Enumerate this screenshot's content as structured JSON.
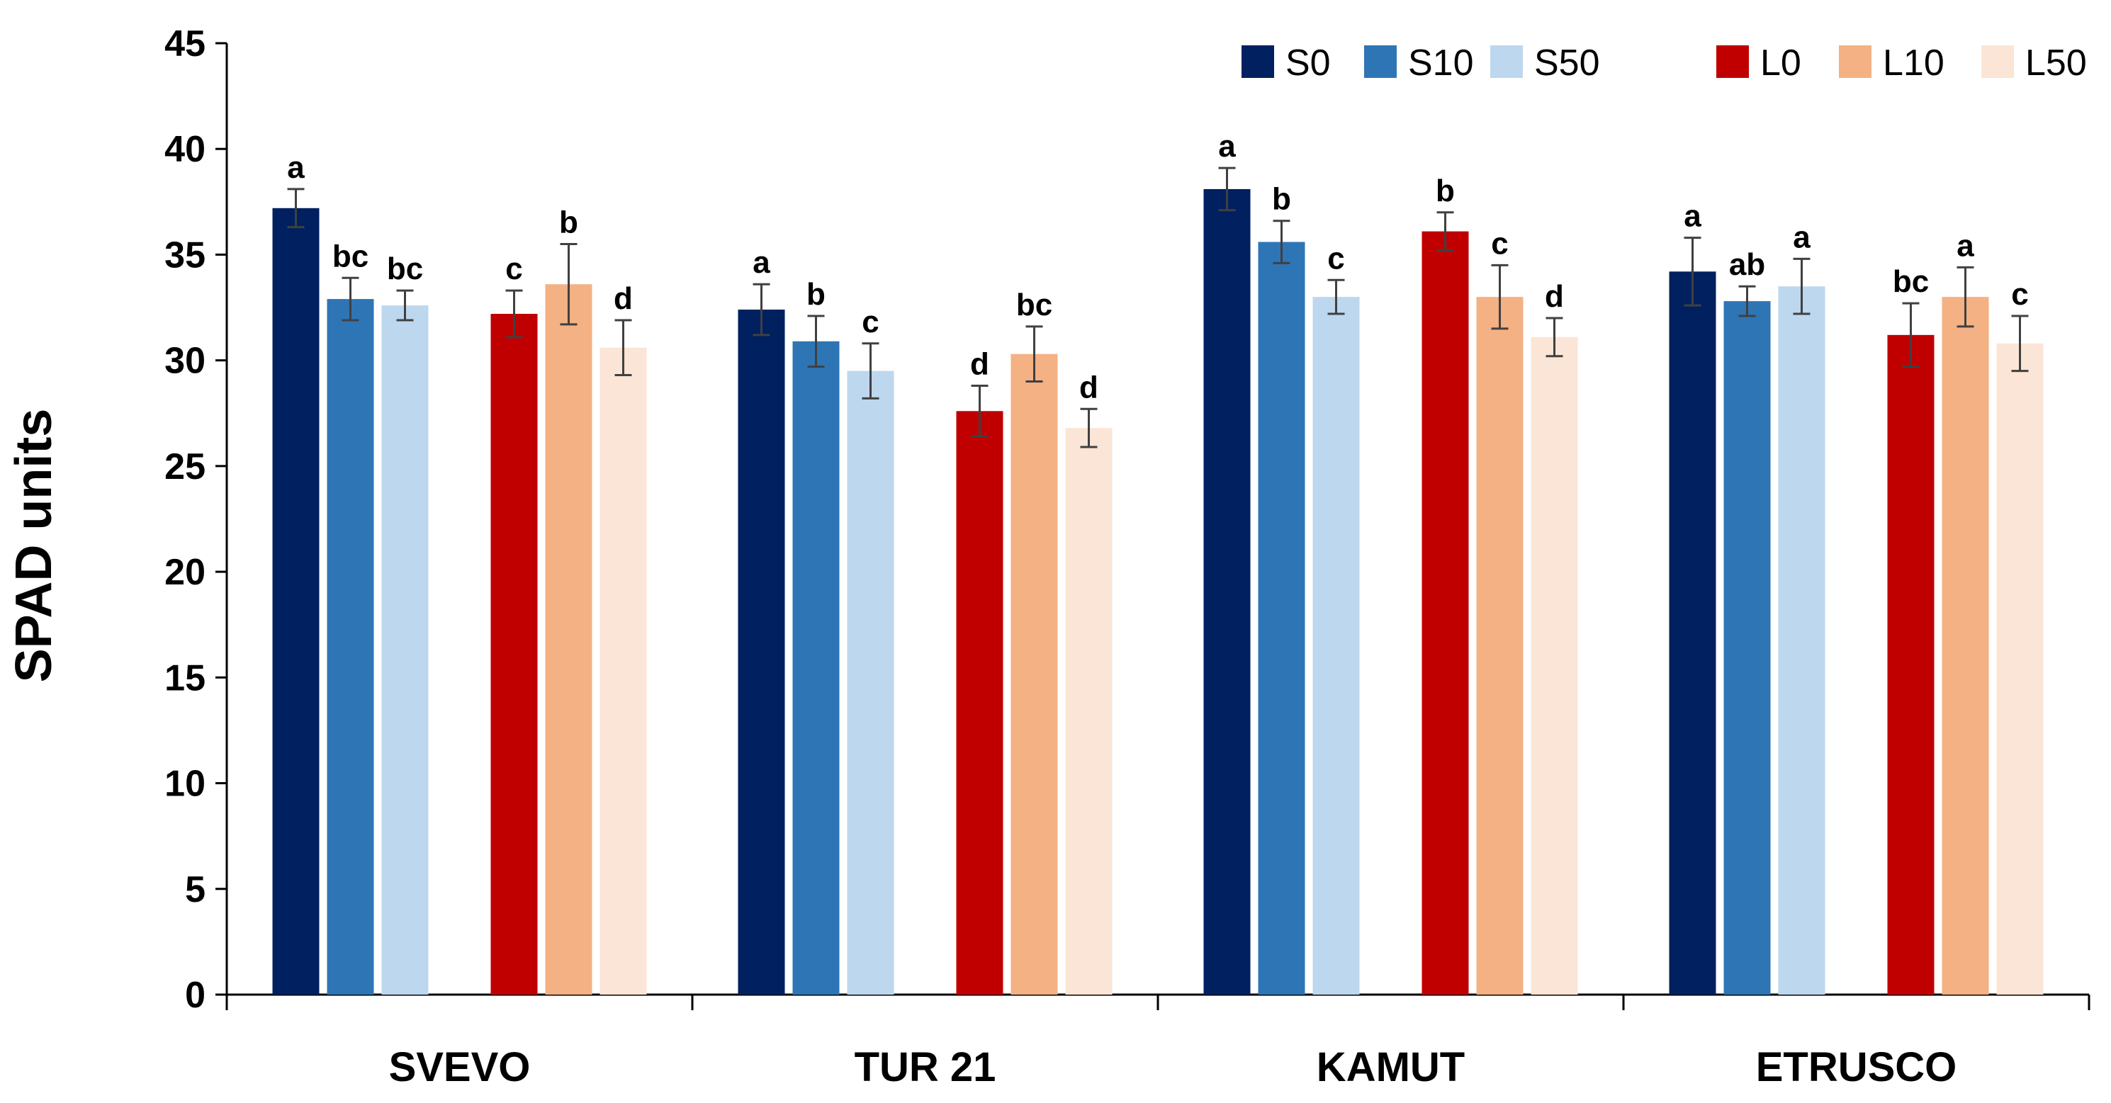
{
  "chart_data": {
    "type": "bar",
    "title": "",
    "xlabel": "",
    "ylabel": "SPAD units",
    "ylim": [
      0,
      45
    ],
    "yticks": [
      "0",
      "5",
      "10",
      "15",
      "20",
      "25",
      "30",
      "35",
      "40",
      "45"
    ],
    "categories": [
      "SVEVO",
      "TUR 21",
      "KAMUT",
      "ETRUSCO"
    ],
    "legend_position": "top-right",
    "grid": false,
    "series": [
      {
        "name": "S0",
        "color": "#002060",
        "values": [
          37.2,
          32.4,
          38.1,
          34.2
        ],
        "errors": [
          0.9,
          1.2,
          1.0,
          1.6
        ],
        "labels": [
          "a",
          "a",
          "a",
          "a"
        ]
      },
      {
        "name": "S10",
        "color": "#2E75B6",
        "values": [
          32.9,
          30.9,
          35.6,
          32.8
        ],
        "errors": [
          1.0,
          1.2,
          1.0,
          0.7
        ],
        "labels": [
          "bc",
          "b",
          "b",
          "ab"
        ]
      },
      {
        "name": "S50",
        "color": "#BDD7EE",
        "values": [
          32.6,
          29.5,
          33.0,
          33.5
        ],
        "errors": [
          0.7,
          1.3,
          0.8,
          1.3
        ],
        "labels": [
          "bc",
          "c",
          "c",
          "a"
        ]
      },
      {
        "name": "L0",
        "color": "#C00000",
        "values": [
          32.2,
          27.6,
          36.1,
          31.2
        ],
        "errors": [
          1.1,
          1.2,
          0.9,
          1.5
        ],
        "labels": [
          "c",
          "d",
          "b",
          "bc"
        ]
      },
      {
        "name": "L10",
        "color": "#F4B183",
        "values": [
          33.6,
          30.3,
          33.0,
          33.0
        ],
        "errors": [
          1.9,
          1.3,
          1.5,
          1.4
        ],
        "labels": [
          "b",
          "bc",
          "c",
          "a"
        ]
      },
      {
        "name": "L50",
        "color": "#FBE5D6",
        "values": [
          30.6,
          26.8,
          31.1,
          30.8
        ],
        "errors": [
          1.3,
          0.9,
          0.9,
          1.3
        ],
        "labels": [
          "d",
          "d",
          "d",
          "c"
        ]
      }
    ]
  }
}
